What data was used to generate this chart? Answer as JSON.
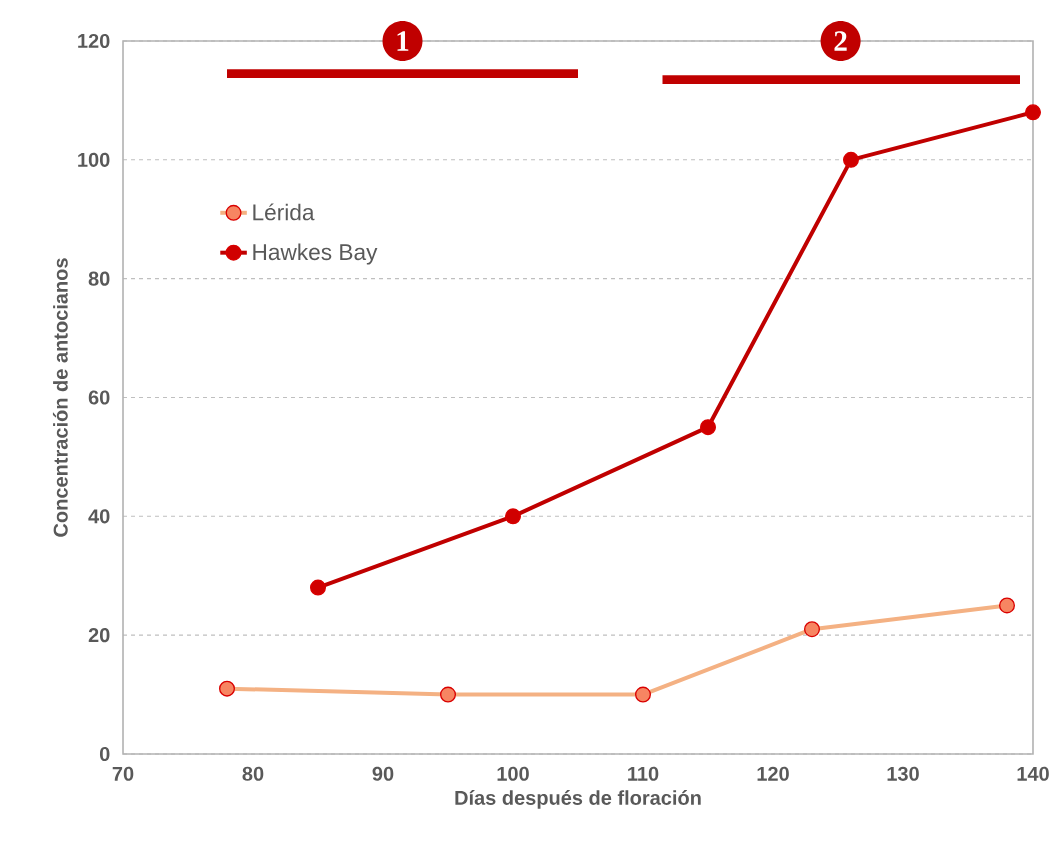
{
  "chart_data": {
    "type": "line",
    "xlabel": "Días después de floración",
    "ylabel": "Concentración de antocianos",
    "series": [
      {
        "name": "Lérida",
        "color": "#f4b183",
        "x": [
          78,
          95,
          110,
          123,
          138
        ],
        "values": [
          11,
          10,
          10,
          21,
          25
        ]
      },
      {
        "name": "Hawkes Bay",
        "color": "#c00000",
        "x": [
          85,
          100,
          115,
          126,
          140
        ],
        "values": [
          28,
          40,
          55,
          100,
          108
        ]
      },
      {
        "type": "line",
        "color": "#c00000",
        "x": [
          78,
          105
        ],
        "values": [
          114.5,
          114.5
        ],
        "marker": "none"
      },
      {
        "type": "line",
        "color": "#c00000",
        "x": [
          111.5,
          139
        ],
        "values": [
          113.5,
          113.5
        ],
        "marker": "none"
      }
    ],
    "annotations": [
      {
        "text": "1",
        "x": 91.5,
        "y": 120
      },
      {
        "text": "2",
        "x": 125.2,
        "y": 120
      }
    ],
    "xlim": [
      70,
      140
    ],
    "xticks": [
      70,
      80,
      90,
      100,
      110,
      120,
      130,
      140
    ],
    "ylim": [
      0,
      120
    ],
    "yticks": [
      0,
      20,
      40,
      60,
      80,
      100,
      120
    ],
    "grid": "y",
    "legend": "top left",
    "marker": "circle",
    "line_style": "solid"
  }
}
